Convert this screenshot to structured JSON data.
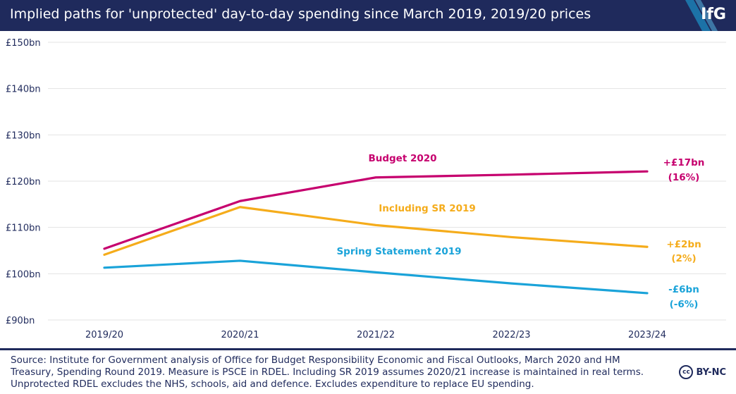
{
  "header": {
    "title": "Implied paths for 'unprotected' day-to-day spending since March 2019, 2019/20 prices",
    "logo": "IfG"
  },
  "colors": {
    "header_bg": "#1f2a5c",
    "grid": "#e3e3e3",
    "axis_text": "#1f2a5c",
    "budget": "#c6006e",
    "sr": "#f5ac1b",
    "spring": "#1aa3d9"
  },
  "chart_data": {
    "type": "line",
    "categories": [
      "2019/20",
      "2020/21",
      "2021/22",
      "2022/23",
      "2023/24"
    ],
    "ylim": [
      90,
      150
    ],
    "yticks": [
      90,
      100,
      110,
      120,
      130,
      140,
      150
    ],
    "ytick_labels": [
      "£90bn",
      "£100bn",
      "£110bn",
      "£120bn",
      "£130bn",
      "£140bn",
      "£150bn"
    ],
    "grid": true,
    "series": [
      {
        "name": "Budget 2020",
        "values": [
          105.4,
          115.7,
          120.8,
          121.4,
          122.1
        ],
        "end_label": "+£17bn",
        "end_sub": "(16%)",
        "color_key": "budget"
      },
      {
        "name": "Including SR 2019",
        "values": [
          104.1,
          114.4,
          110.5,
          107.9,
          105.8
        ],
        "end_label": "+£2bn",
        "end_sub": "(2%)",
        "color_key": "sr"
      },
      {
        "name": "Spring Statement 2019",
        "values": [
          101.3,
          102.8,
          100.3,
          97.9,
          95.8
        ],
        "end_label": "-£6bn",
        "end_sub": "(-6%)",
        "color_key": "spring"
      }
    ]
  },
  "footer": {
    "source": "Source: Institute for Government analysis of Office for Budget Responsibility Economic and Fiscal Outlooks, March 2020 and HM Treasury, Spending Round 2019. Measure is PSCE in RDEL. Including SR 2019 assumes 2020/21 increase is maintained in real terms. Unprotected RDEL excludes the NHS, schools, aid and defence. Excludes expenditure to replace EU spending.",
    "license": "BY-NC",
    "cc": "cc"
  }
}
